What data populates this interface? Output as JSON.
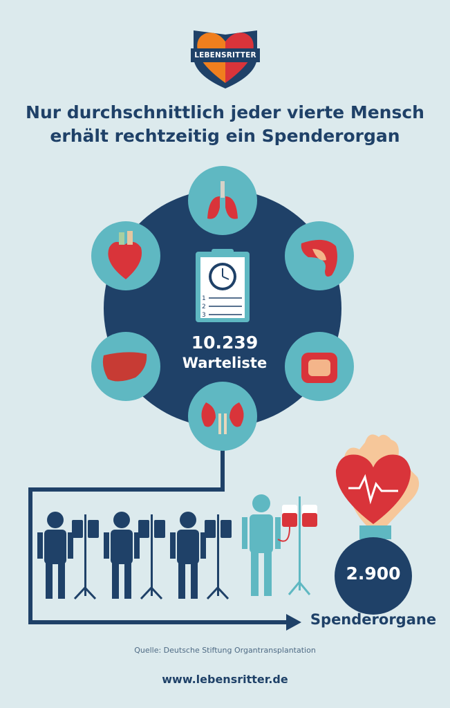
{
  "logo": {
    "text": "LEBENSRITTER"
  },
  "title": {
    "line1": "Nur durchschnittlich jeder vierte Mensch",
    "line2": "erhält rechtzeitig ein Spenderorgan"
  },
  "waitlist": {
    "count": "10.239",
    "label": "Warteliste"
  },
  "clipboard": {
    "items": [
      "1",
      "2",
      "3"
    ]
  },
  "donors": {
    "count": "2.900",
    "label": "Spenderorgane"
  },
  "source": "Quelle: Deutsche Stiftung Organtransplantation",
  "website": "www.lebensritter.de",
  "colors": {
    "background": "#dceaed",
    "navy": "#1f4168",
    "teal": "#5fb8c2",
    "red": "#d9343a",
    "orange": "#f07f1e"
  }
}
